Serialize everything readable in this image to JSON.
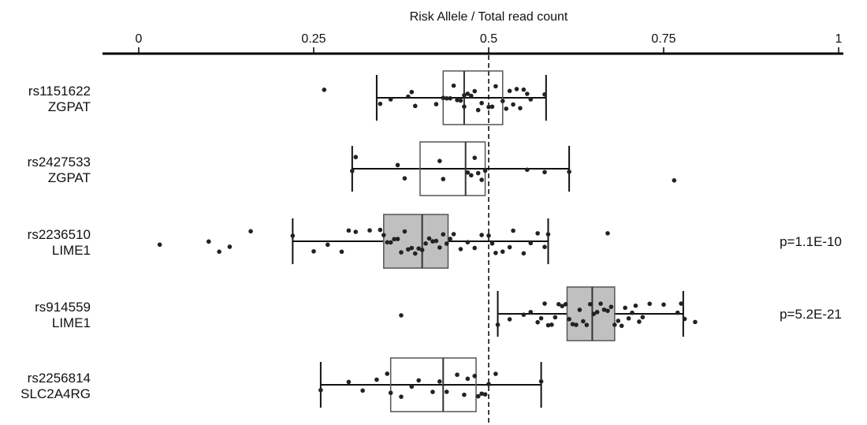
{
  "chart_data": {
    "type": "box",
    "xlabel": "Risk Allele / Total read count",
    "xlim": [
      0,
      1
    ],
    "xticks": [
      "0",
      "0.25",
      "0.5",
      "0.75",
      "1"
    ],
    "xtick_values": [
      0,
      0.25,
      0.5,
      0.75,
      1
    ],
    "reference_line": 0.5,
    "rows": [
      {
        "snp": "rs1151622",
        "gene": "ZGPAT",
        "pvalue": "",
        "shaded": false,
        "whisker_low": 0.34,
        "q1": 0.435,
        "median": 0.465,
        "q3": 0.52,
        "whisker_high": 0.582,
        "points": [
          0.265,
          0.345,
          0.36,
          0.385,
          0.39,
          0.395,
          0.425,
          0.435,
          0.44,
          0.445,
          0.45,
          0.455,
          0.46,
          0.465,
          0.465,
          0.47,
          0.475,
          0.48,
          0.485,
          0.49,
          0.5,
          0.505,
          0.51,
          0.52,
          0.525,
          0.53,
          0.535,
          0.54,
          0.545,
          0.55,
          0.555,
          0.56,
          0.58
        ]
      },
      {
        "snp": "rs2427533",
        "gene": "ZGPAT",
        "pvalue": "",
        "shaded": false,
        "whisker_low": 0.305,
        "q1": 0.402,
        "median": 0.467,
        "q3": 0.495,
        "whisker_high": 0.615,
        "points": [
          0.305,
          0.31,
          0.37,
          0.38,
          0.43,
          0.435,
          0.47,
          0.475,
          0.48,
          0.485,
          0.49,
          0.495,
          0.555,
          0.58,
          0.615,
          0.765
        ]
      },
      {
        "snp": "rs2236510",
        "gene": "LIME1",
        "pvalue": "p=1.1E-10",
        "shaded": true,
        "whisker_low": 0.22,
        "q1": 0.35,
        "median": 0.405,
        "q3": 0.442,
        "whisker_high": 0.585,
        "points": [
          0.03,
          0.1,
          0.115,
          0.13,
          0.16,
          0.22,
          0.25,
          0.27,
          0.29,
          0.3,
          0.31,
          0.33,
          0.345,
          0.35,
          0.355,
          0.36,
          0.365,
          0.37,
          0.375,
          0.38,
          0.385,
          0.39,
          0.395,
          0.4,
          0.405,
          0.41,
          0.415,
          0.42,
          0.425,
          0.43,
          0.435,
          0.44,
          0.445,
          0.45,
          0.46,
          0.47,
          0.48,
          0.49,
          0.5,
          0.505,
          0.51,
          0.52,
          0.53,
          0.535,
          0.55,
          0.56,
          0.57,
          0.58,
          0.585,
          0.67
        ]
      },
      {
        "snp": "rs914559",
        "gene": "LIME1",
        "pvalue": "p=5.2E-21",
        "shaded": true,
        "whisker_low": 0.513,
        "q1": 0.612,
        "median": 0.648,
        "q3": 0.68,
        "whisker_high": 0.778,
        "points": [
          0.375,
          0.513,
          0.53,
          0.55,
          0.56,
          0.57,
          0.575,
          0.58,
          0.585,
          0.59,
          0.595,
          0.6,
          0.605,
          0.61,
          0.615,
          0.62,
          0.625,
          0.63,
          0.635,
          0.64,
          0.645,
          0.65,
          0.655,
          0.66,
          0.665,
          0.67,
          0.675,
          0.68,
          0.685,
          0.69,
          0.695,
          0.7,
          0.705,
          0.71,
          0.715,
          0.72,
          0.73,
          0.75,
          0.77,
          0.775,
          0.78,
          0.795
        ]
      },
      {
        "snp": "rs2256814",
        "gene": "SLC2A4RG",
        "pvalue": "",
        "shaded": false,
        "whisker_low": 0.26,
        "q1": 0.36,
        "median": 0.435,
        "q3": 0.482,
        "whisker_high": 0.575,
        "points": [
          0.26,
          0.3,
          0.32,
          0.34,
          0.355,
          0.36,
          0.375,
          0.39,
          0.4,
          0.42,
          0.43,
          0.44,
          0.455,
          0.465,
          0.47,
          0.48,
          0.485,
          0.49,
          0.495,
          0.5,
          0.51,
          0.575
        ]
      }
    ]
  }
}
